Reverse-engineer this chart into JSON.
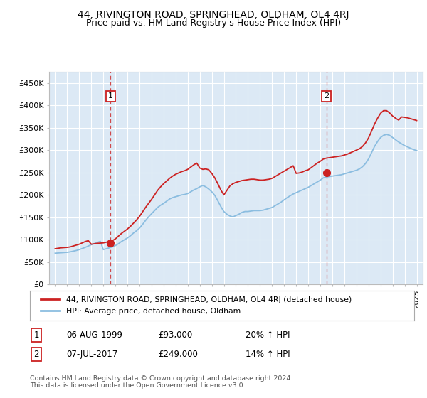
{
  "title": "44, RIVINGTON ROAD, SPRINGHEAD, OLDHAM, OL4 4RJ",
  "subtitle": "Price paid vs. HM Land Registry's House Price Index (HPI)",
  "bg_color": "#dce9f5",
  "grid_color": "#ffffff",
  "hpi_color": "#8bbde0",
  "price_color": "#cc2222",
  "sale1_date_x": 1999.6,
  "sale1_price": 93000,
  "sale1_label": "1",
  "sale2_date_x": 2017.5,
  "sale2_price": 249000,
  "sale2_label": "2",
  "ylim_min": 0,
  "ylim_max": 475000,
  "yticks": [
    0,
    50000,
    100000,
    150000,
    200000,
    250000,
    300000,
    350000,
    400000,
    450000
  ],
  "ytick_labels": [
    "£0",
    "£50K",
    "£100K",
    "£150K",
    "£200K",
    "£250K",
    "£300K",
    "£350K",
    "£400K",
    "£450K"
  ],
  "xlim_min": 1994.5,
  "xlim_max": 2025.5,
  "xtick_years": [
    1995,
    1996,
    1997,
    1998,
    1999,
    2000,
    2001,
    2002,
    2003,
    2004,
    2005,
    2006,
    2007,
    2008,
    2009,
    2010,
    2011,
    2012,
    2013,
    2014,
    2015,
    2016,
    2017,
    2018,
    2019,
    2020,
    2021,
    2022,
    2023,
    2024,
    2025
  ],
  "legend_line1": "44, RIVINGTON ROAD, SPRINGHEAD, OLDHAM, OL4 4RJ (detached house)",
  "legend_line2": "HPI: Average price, detached house, Oldham",
  "annotation1_date": "06-AUG-1999",
  "annotation1_price": "£93,000",
  "annotation1_hpi": "20% ↑ HPI",
  "annotation2_date": "07-JUL-2017",
  "annotation2_price": "£249,000",
  "annotation2_hpi": "14% ↑ HPI",
  "footer": "Contains HM Land Registry data © Crown copyright and database right 2024.\nThis data is licensed under the Open Government Licence v3.0.",
  "hpi_x": [
    1995,
    1995.25,
    1995.5,
    1995.75,
    1996,
    1996.25,
    1996.5,
    1996.75,
    1997,
    1997.25,
    1997.5,
    1997.75,
    1998,
    1998.25,
    1998.5,
    1998.75,
    1999,
    1999.25,
    1999.5,
    1999.75,
    2000,
    2000.25,
    2000.5,
    2000.75,
    2001,
    2001.25,
    2001.5,
    2001.75,
    2002,
    2002.25,
    2002.5,
    2002.75,
    2003,
    2003.25,
    2003.5,
    2003.75,
    2004,
    2004.25,
    2004.5,
    2004.75,
    2005,
    2005.25,
    2005.5,
    2005.75,
    2006,
    2006.25,
    2006.5,
    2006.75,
    2007,
    2007.25,
    2007.5,
    2007.75,
    2008,
    2008.25,
    2008.5,
    2008.75,
    2009,
    2009.25,
    2009.5,
    2009.75,
    2010,
    2010.25,
    2010.5,
    2010.75,
    2011,
    2011.25,
    2011.5,
    2011.75,
    2012,
    2012.25,
    2012.5,
    2012.75,
    2013,
    2013.25,
    2013.5,
    2013.75,
    2014,
    2014.25,
    2014.5,
    2014.75,
    2015,
    2015.25,
    2015.5,
    2015.75,
    2016,
    2016.25,
    2016.5,
    2016.75,
    2017,
    2017.25,
    2017.5,
    2017.75,
    2018,
    2018.25,
    2018.5,
    2018.75,
    2019,
    2019.25,
    2019.5,
    2019.75,
    2020,
    2020.25,
    2020.5,
    2020.75,
    2021,
    2021.25,
    2021.5,
    2021.75,
    2022,
    2022.25,
    2022.5,
    2022.75,
    2023,
    2023.25,
    2023.5,
    2023.75,
    2024,
    2024.25,
    2024.5,
    2024.75,
    2025
  ],
  "hpi_y": [
    70000,
    70500,
    71000,
    71500,
    72000,
    73000,
    74500,
    76000,
    78000,
    80500,
    83000,
    86000,
    89000,
    91500,
    94000,
    96500,
    78000,
    80000,
    82000,
    84000,
    87000,
    91000,
    96000,
    100000,
    104000,
    109000,
    115000,
    120000,
    126000,
    134000,
    143000,
    151000,
    158000,
    165000,
    172000,
    177000,
    181000,
    186000,
    191000,
    194000,
    196000,
    198000,
    200000,
    201000,
    203000,
    207000,
    211000,
    214000,
    218000,
    221000,
    218000,
    213000,
    207000,
    199000,
    187000,
    174000,
    163000,
    157000,
    153000,
    151000,
    154000,
    157000,
    161000,
    163000,
    163000,
    164000,
    165000,
    165000,
    165000,
    166000,
    168000,
    170000,
    172000,
    176000,
    180000,
    184000,
    189000,
    194000,
    198000,
    202000,
    205000,
    208000,
    211000,
    214000,
    217000,
    221000,
    225000,
    229000,
    233000,
    238000,
    240000,
    241000,
    242000,
    243000,
    244000,
    245000,
    247000,
    249000,
    251000,
    253000,
    255000,
    258000,
    263000,
    270000,
    280000,
    294000,
    308000,
    319000,
    328000,
    333000,
    335000,
    333000,
    328000,
    323000,
    318000,
    314000,
    310000,
    307000,
    304000,
    301000,
    299000
  ],
  "price_x": [
    1995,
    1995.25,
    1995.5,
    1995.75,
    1996,
    1996.25,
    1996.5,
    1996.75,
    1997,
    1997.25,
    1997.5,
    1997.75,
    1998,
    1998.25,
    1998.5,
    1998.75,
    1999,
    1999.25,
    1999.5,
    1999.75,
    2000,
    2000.25,
    2000.5,
    2000.75,
    2001,
    2001.25,
    2001.5,
    2001.75,
    2002,
    2002.25,
    2002.5,
    2002.75,
    2003,
    2003.25,
    2003.5,
    2003.75,
    2004,
    2004.25,
    2004.5,
    2004.75,
    2005,
    2005.25,
    2005.5,
    2005.75,
    2006,
    2006.25,
    2006.5,
    2006.75,
    2007,
    2007.25,
    2007.5,
    2007.75,
    2008,
    2008.25,
    2008.5,
    2008.75,
    2009,
    2009.25,
    2009.5,
    2009.75,
    2010,
    2010.25,
    2010.5,
    2010.75,
    2011,
    2011.25,
    2011.5,
    2011.75,
    2012,
    2012.25,
    2012.5,
    2012.75,
    2013,
    2013.25,
    2013.5,
    2013.75,
    2014,
    2014.25,
    2014.5,
    2014.75,
    2015,
    2015.25,
    2015.5,
    2015.75,
    2016,
    2016.25,
    2016.5,
    2016.75,
    2017,
    2017.25,
    2017.5,
    2017.75,
    2018,
    2018.25,
    2018.5,
    2018.75,
    2019,
    2019.25,
    2019.5,
    2019.75,
    2020,
    2020.25,
    2020.5,
    2020.75,
    2021,
    2021.25,
    2021.5,
    2021.75,
    2022,
    2022.25,
    2022.5,
    2022.75,
    2023,
    2023.25,
    2023.5,
    2023.75,
    2024,
    2024.25,
    2024.5,
    2024.75,
    2025
  ],
  "price_y": [
    80000,
    81000,
    82000,
    82500,
    83000,
    84000,
    86000,
    88000,
    90000,
    93000,
    96000,
    98000,
    90000,
    91000,
    92000,
    92500,
    93000,
    94500,
    96000,
    98000,
    102000,
    108000,
    114000,
    119000,
    124000,
    130000,
    137000,
    144000,
    152000,
    162000,
    172000,
    181000,
    190000,
    200000,
    210000,
    218000,
    225000,
    231000,
    237000,
    242000,
    246000,
    249000,
    252000,
    254000,
    257000,
    262000,
    267000,
    271000,
    260000,
    257000,
    258000,
    256000,
    248000,
    238000,
    225000,
    211000,
    200000,
    210000,
    220000,
    225000,
    228000,
    230000,
    232000,
    233000,
    234000,
    235000,
    235000,
    234000,
    233000,
    233000,
    234000,
    235000,
    237000,
    241000,
    245000,
    249000,
    253000,
    257000,
    261000,
    265000,
    248000,
    249000,
    251000,
    254000,
    256000,
    261000,
    266000,
    271000,
    275000,
    280000,
    282000,
    283000,
    284000,
    285000,
    286000,
    287000,
    289000,
    291000,
    294000,
    297000,
    300000,
    303000,
    308000,
    316000,
    327000,
    342000,
    358000,
    371000,
    382000,
    388000,
    388000,
    383000,
    376000,
    371000,
    367000,
    374000,
    373000,
    372000,
    370000,
    368000,
    366000
  ]
}
